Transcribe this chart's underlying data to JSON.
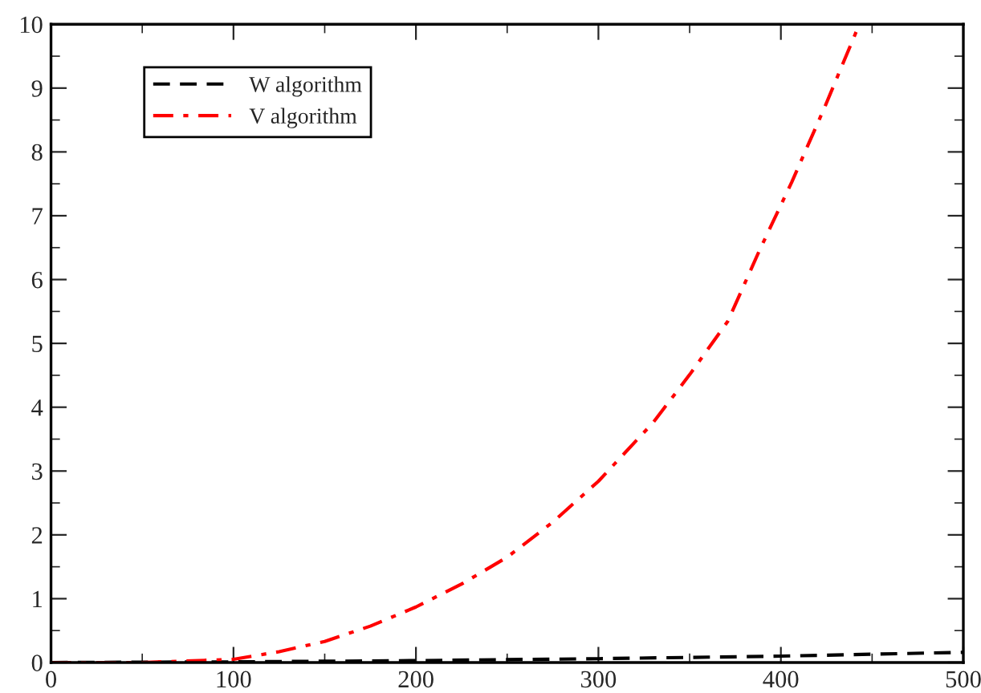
{
  "chart_data": {
    "type": "line",
    "series": [
      {
        "name": "W algorithm",
        "color": "#000000",
        "line_style": "dashed",
        "x": [
          0,
          100,
          200,
          300,
          400,
          500
        ],
        "values": [
          0,
          0.01,
          0.03,
          0.06,
          0.1,
          0.16
        ]
      },
      {
        "name": "V algorithm",
        "color": "#ff0000",
        "line_style": "dashdot",
        "x": [
          0,
          50,
          100,
          125,
          150,
          175,
          200,
          225,
          250,
          275,
          300,
          330,
          350,
          371,
          388,
          406,
          424,
          443
        ],
        "values": [
          0,
          0,
          0.05,
          0.17,
          0.33,
          0.57,
          0.87,
          1.23,
          1.65,
          2.2,
          2.84,
          3.76,
          4.51,
          5.35,
          6.44,
          7.53,
          8.7,
          10.0
        ]
      }
    ],
    "xlim": [
      0,
      500
    ],
    "xticks": [
      0,
      100,
      200,
      300,
      400,
      500
    ],
    "ylim": [
      0,
      10
    ],
    "yticks": [
      0,
      1,
      2,
      3,
      4,
      5,
      6,
      7,
      8,
      9,
      10
    ],
    "grid": false,
    "legend": "top left"
  }
}
